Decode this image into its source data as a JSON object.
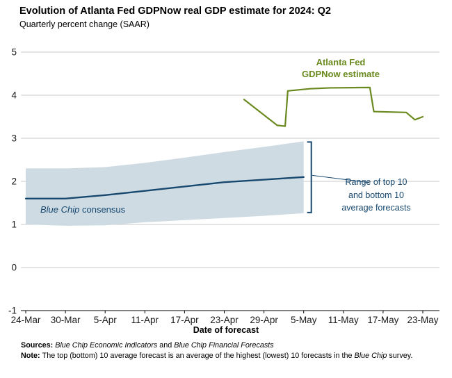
{
  "page": {
    "title": "Evolution of Atlanta Fed GDPNow real GDP estimate for 2024: Q2",
    "subtitle": "Quarterly percent change (SAAR)"
  },
  "colors": {
    "green": "#6a8a1f",
    "blue": "#17486f",
    "band": "#cbd9e1",
    "grid": "#c9c9c9",
    "axis": "#000000"
  },
  "annotations": {
    "gdpnow_line1": "Atlanta Fed",
    "gdpnow_line2": "GDPNow estimate",
    "bluechip_italic": "Blue Chip",
    "bluechip_rest": " consensus",
    "range_line1": "Range of top 10",
    "range_line2": "and bottom 10",
    "range_line3": "average forecasts"
  },
  "footer": {
    "sources_label": "Sources: ",
    "source1": "Blue Chip Economic Indicators",
    "sources_and": " and ",
    "source2": "Blue Chip Financial Forecasts",
    "note_label": "Note: ",
    "note_text_pre": "The top (bottom) 10 average forecast is an average of the highest (lowest) 10 forecasts in the ",
    "note_italic": "Blue Chip",
    "note_text_post": " survey."
  },
  "chart_data": {
    "type": "line",
    "title": "Evolution of Atlanta Fed GDPNow real GDP estimate for 2024: Q2",
    "subtitle": "Quarterly percent change (SAAR)",
    "xlabel": "Date of forecast",
    "ylabel": "Quarterly percent change (SAAR)",
    "ylim": [
      -1,
      5
    ],
    "yticks": [
      5,
      4,
      3,
      2,
      1,
      0,
      -1
    ],
    "grid": "horizontal",
    "legend": "inline-annotations",
    "x_range_days": [
      0,
      60
    ],
    "xticks": [
      {
        "day": 0,
        "label": "24-Mar"
      },
      {
        "day": 6,
        "label": "30-Mar"
      },
      {
        "day": 12,
        "label": "5-Apr"
      },
      {
        "day": 18,
        "label": "11-Apr"
      },
      {
        "day": 24,
        "label": "17-Apr"
      },
      {
        "day": 30,
        "label": "23-Apr"
      },
      {
        "day": 36,
        "label": "29-Apr"
      },
      {
        "day": 42,
        "label": "5-May"
      },
      {
        "day": 48,
        "label": "11-May"
      },
      {
        "day": 54,
        "label": "17-May"
      },
      {
        "day": 60,
        "label": "23-May"
      }
    ],
    "series": [
      {
        "name": "Atlanta Fed GDPNow estimate",
        "color": "#6a8a1f",
        "width": 2.2,
        "points": [
          {
            "day": 33,
            "value": 3.9
          },
          {
            "day": 38,
            "value": 3.3
          },
          {
            "day": 39.2,
            "value": 3.28
          },
          {
            "day": 39.6,
            "value": 4.1
          },
          {
            "day": 43,
            "value": 4.15
          },
          {
            "day": 46,
            "value": 4.17
          },
          {
            "day": 52,
            "value": 4.18
          },
          {
            "day": 52.6,
            "value": 3.62
          },
          {
            "day": 57.5,
            "value": 3.6
          },
          {
            "day": 58.8,
            "value": 3.43
          },
          {
            "day": 60,
            "value": 3.5
          }
        ]
      },
      {
        "name": "Blue Chip consensus",
        "color": "#17486f",
        "width": 2.4,
        "points": [
          {
            "day": 0,
            "value": 1.6
          },
          {
            "day": 6,
            "value": 1.6
          },
          {
            "day": 12,
            "value": 1.68
          },
          {
            "day": 18,
            "value": 1.78
          },
          {
            "day": 24,
            "value": 1.88
          },
          {
            "day": 30,
            "value": 1.98
          },
          {
            "day": 36,
            "value": 2.04
          },
          {
            "day": 42,
            "value": 2.1
          }
        ]
      }
    ],
    "band": {
      "name": "Range of top 10 and bottom 10 average forecasts",
      "color": "#cbd9e1",
      "points": [
        {
          "day": 0,
          "bottom": 1.0,
          "top": 2.3
        },
        {
          "day": 6,
          "bottom": 0.97,
          "top": 2.3
        },
        {
          "day": 12,
          "bottom": 0.98,
          "top": 2.33
        },
        {
          "day": 18,
          "bottom": 1.05,
          "top": 2.43
        },
        {
          "day": 24,
          "bottom": 1.1,
          "top": 2.55
        },
        {
          "day": 30,
          "bottom": 1.15,
          "top": 2.68
        },
        {
          "day": 36,
          "bottom": 1.2,
          "top": 2.8
        },
        {
          "day": 42,
          "bottom": 1.26,
          "top": 2.93
        }
      ]
    },
    "leader_line": {
      "from": {
        "day": 43.3,
        "value": 2.14
      },
      "to": {
        "day": 51.9,
        "value": 1.97
      }
    }
  }
}
